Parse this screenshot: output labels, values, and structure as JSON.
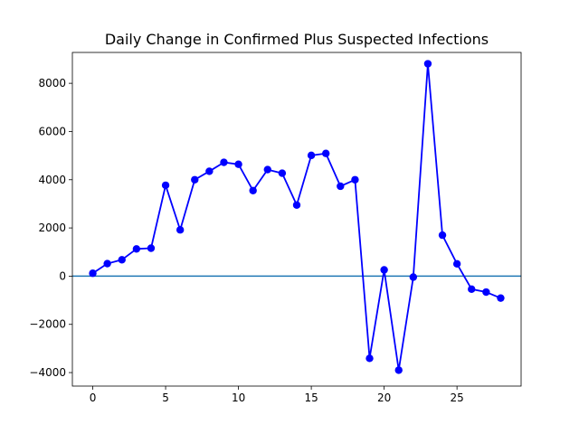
{
  "chart_data": {
    "type": "line",
    "title": "Daily Change in Confirmed Plus Suspected Infections",
    "xlabel": "",
    "ylabel": "",
    "xlim": [
      -1.4,
      29.4
    ],
    "ylim": [
      -4560,
      9280
    ],
    "xticks": [
      0,
      5,
      10,
      15,
      20,
      25
    ],
    "yticks": [
      -4000,
      -2000,
      0,
      2000,
      4000,
      6000,
      8000
    ],
    "grid": false,
    "reference_line": {
      "y": 0,
      "color": "#1f77b4"
    },
    "series": [
      {
        "color": "#0000ff",
        "marker": "circle",
        "x": [
          0,
          1,
          2,
          3,
          4,
          5,
          6,
          7,
          8,
          9,
          10,
          11,
          12,
          13,
          14,
          15,
          16,
          17,
          18,
          19,
          20,
          21,
          22,
          23,
          24,
          25,
          26,
          27,
          28
        ],
        "y": [
          120,
          520,
          680,
          1130,
          1160,
          3770,
          1920,
          4000,
          4350,
          4720,
          4640,
          3550,
          4420,
          4270,
          2950,
          5010,
          5090,
          3730,
          4000,
          -3410,
          260,
          -3900,
          -40,
          8810,
          1700,
          510,
          -540,
          -660,
          -910
        ]
      }
    ]
  }
}
